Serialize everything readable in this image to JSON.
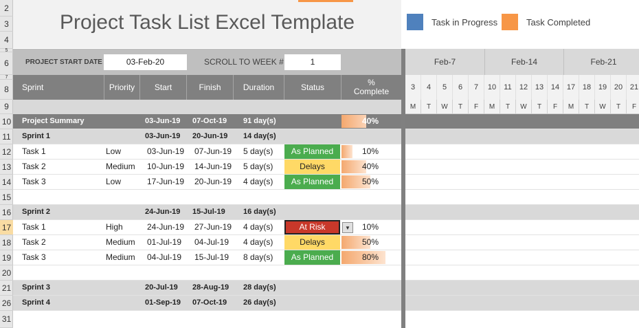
{
  "row_numbers": [
    "2",
    "3",
    "4",
    "5",
    "6",
    "7",
    "8",
    "9",
    "10",
    "11",
    "12",
    "13",
    "14",
    "15",
    "16",
    "17",
    "18",
    "19",
    "20",
    "21",
    "26",
    "31"
  ],
  "title": "Project Task List Excel Template",
  "legend": {
    "in_progress": {
      "label": "Task in Progress",
      "color": "#4f81bd"
    },
    "completed": {
      "label": "Task Completed",
      "color": "#f79646"
    }
  },
  "controls": {
    "start_label": "PROJECT START DATE",
    "start_value": "03-Feb-20",
    "scroll_label": "SCROLL TO WEEK #",
    "scroll_value": "1"
  },
  "columns": {
    "sprint": "Sprint",
    "priority": "Priority",
    "start": "Start",
    "finish": "Finish",
    "duration": "Duration",
    "status": "Status",
    "complete": "%\nComplete"
  },
  "summary": {
    "name": "Project Summary",
    "start": "03-Jun-19",
    "finish": "07-Oct-19",
    "duration": "91 day(s)",
    "pct_label": "40%",
    "pct": 0.4
  },
  "sprint1": {
    "name": "Sprint 1",
    "start": "03-Jun-19",
    "finish": "20-Jun-19",
    "duration": "14 day(s)"
  },
  "sprint1_tasks": [
    {
      "name": "Task 1",
      "priority": "Low",
      "start": "03-Jun-19",
      "finish": "07-Jun-19",
      "duration": "5 day(s)",
      "status": "As Planned",
      "pct_label": "10%",
      "pct": 0.1
    },
    {
      "name": "Task 2",
      "priority": "Medium",
      "start": "10-Jun-19",
      "finish": "14-Jun-19",
      "duration": "5 day(s)",
      "status": "Delays",
      "pct_label": "40%",
      "pct": 0.4
    },
    {
      "name": "Task 3",
      "priority": "Low",
      "start": "17-Jun-19",
      "finish": "20-Jun-19",
      "duration": "4 day(s)",
      "status": "As Planned",
      "pct_label": "50%",
      "pct": 0.5
    }
  ],
  "sprint2": {
    "name": "Sprint 2",
    "start": "24-Jun-19",
    "finish": "15-Jul-19",
    "duration": "16 day(s)"
  },
  "sprint2_tasks": [
    {
      "name": "Task 1",
      "priority": "High",
      "start": "24-Jun-19",
      "finish": "27-Jun-19",
      "duration": "4 day(s)",
      "status": "At Risk",
      "pct_label": "10%",
      "pct": 0.1
    },
    {
      "name": "Task 2",
      "priority": "Medium",
      "start": "01-Jul-19",
      "finish": "04-Jul-19",
      "duration": "4 day(s)",
      "status": "Delays",
      "pct_label": "50%",
      "pct": 0.5
    },
    {
      "name": "Task 3",
      "priority": "Medium",
      "start": "04-Jul-19",
      "finish": "15-Jul-19",
      "duration": "8 day(s)",
      "status": "As Planned",
      "pct_label": "80%",
      "pct": 0.8
    }
  ],
  "sprint3": {
    "name": "Sprint 3",
    "start": "20-Jul-19",
    "finish": "28-Aug-19",
    "duration": "28 day(s)"
  },
  "sprint4": {
    "name": "Sprint 4",
    "start": "01-Sep-19",
    "finish": "07-Oct-19",
    "duration": "26 day(s)"
  },
  "gantt": {
    "weeks": [
      "Feb-7",
      "Feb-14",
      "Feb-21"
    ],
    "days": [
      "3",
      "4",
      "5",
      "6",
      "7",
      "10",
      "11",
      "12",
      "13",
      "14",
      "17",
      "18",
      "19",
      "20",
      "21"
    ],
    "dow": [
      "M",
      "T",
      "W",
      "T",
      "F",
      "M",
      "T",
      "W",
      "T",
      "F",
      "M",
      "T",
      "W",
      "T",
      "F"
    ]
  }
}
